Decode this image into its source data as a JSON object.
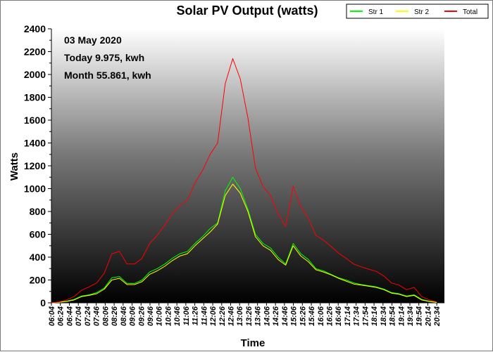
{
  "chart_data": {
    "type": "line",
    "title": "Solar PV Output (watts)",
    "xlabel": "Time",
    "ylabel": "Watts",
    "ylim": [
      0,
      2400
    ],
    "yticks": [
      0,
      200,
      400,
      600,
      800,
      1000,
      1200,
      1400,
      1600,
      1800,
      2000,
      2200,
      2400
    ],
    "xtick_labels": [
      "06:04",
      "06:24",
      "06:44",
      "07:04",
      "07:24",
      "07:46",
      "08:06",
      "08:26",
      "08:46",
      "09:06",
      "09:26",
      "09:46",
      "10:06",
      "10:26",
      "10:46",
      "11:06",
      "11:26",
      "11:46",
      "12:06",
      "12:26",
      "12:46",
      "13:06",
      "13:26",
      "13:46",
      "14:06",
      "14:26",
      "14:46",
      "15:06",
      "15:26",
      "15:46",
      "16:06",
      "16:26",
      "16:46",
      "17:14",
      "17:34",
      "17:54",
      "18:14",
      "18:34",
      "18:54",
      "19:14",
      "19:34",
      "19:54",
      "20:14",
      "20:34"
    ],
    "grid": false,
    "legend_position": "top-right",
    "annotations": [
      "03 May 2020",
      "Today 9.975, kwh",
      "Month 55.861, kwh"
    ],
    "series": [
      {
        "name": "Str 1",
        "color": "#00ff00",
        "values": [
          0,
          5,
          15,
          30,
          60,
          70,
          90,
          130,
          220,
          230,
          170,
          170,
          200,
          270,
          300,
          340,
          390,
          430,
          450,
          520,
          580,
          650,
          700,
          980,
          1100,
          1000,
          820,
          600,
          520,
          480,
          400,
          340,
          520,
          430,
          380,
          300,
          280,
          250,
          220,
          200,
          175,
          160,
          150,
          140,
          120,
          90,
          80,
          60,
          70,
          30,
          15,
          5
        ]
      },
      {
        "name": "Str 2",
        "color": "#ffff00",
        "values": [
          0,
          5,
          12,
          25,
          55,
          65,
          80,
          120,
          200,
          215,
          160,
          160,
          185,
          250,
          280,
          320,
          370,
          410,
          430,
          500,
          560,
          620,
          690,
          940,
          1040,
          960,
          800,
          580,
          500,
          460,
          380,
          330,
          500,
          410,
          360,
          290,
          270,
          245,
          215,
          190,
          165,
          155,
          145,
          135,
          115,
          85,
          75,
          55,
          65,
          25,
          12,
          3
        ]
      },
      {
        "name": "Total",
        "color": "#ff0000",
        "values": [
          0,
          8,
          25,
          55,
          110,
          140,
          175,
          260,
          430,
          450,
          340,
          340,
          390,
          520,
          590,
          680,
          780,
          850,
          900,
          1050,
          1160,
          1300,
          1400,
          1920,
          2140,
          1960,
          1620,
          1180,
          1020,
          940,
          780,
          670,
          1020,
          840,
          740,
          590,
          550,
          495,
          435,
          390,
          340,
          315,
          295,
          275,
          235,
          175,
          155,
          115,
          135,
          55,
          25,
          8
        ]
      }
    ]
  }
}
